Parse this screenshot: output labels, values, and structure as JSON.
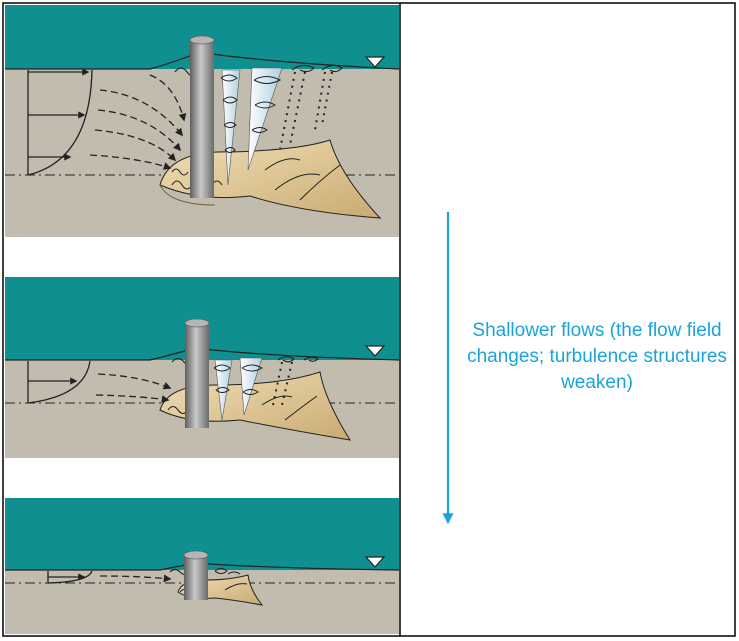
{
  "caption": {
    "text": "Shallower flows (the flow field changes; turbulence structures weaken)",
    "color": "#1aa3dc"
  },
  "colors": {
    "water": "#0f8f8f",
    "bed": "#c2bcae",
    "scour_hole": "#e4cc9c",
    "pier": "#8c8c8c",
    "frame": "#000000"
  },
  "panels": [
    {
      "depth": "deep",
      "water_surface_marker": "triangle-icon"
    },
    {
      "depth": "intermediate",
      "water_surface_marker": "triangle-icon"
    },
    {
      "depth": "shallow",
      "water_surface_marker": "triangle-icon"
    }
  ]
}
